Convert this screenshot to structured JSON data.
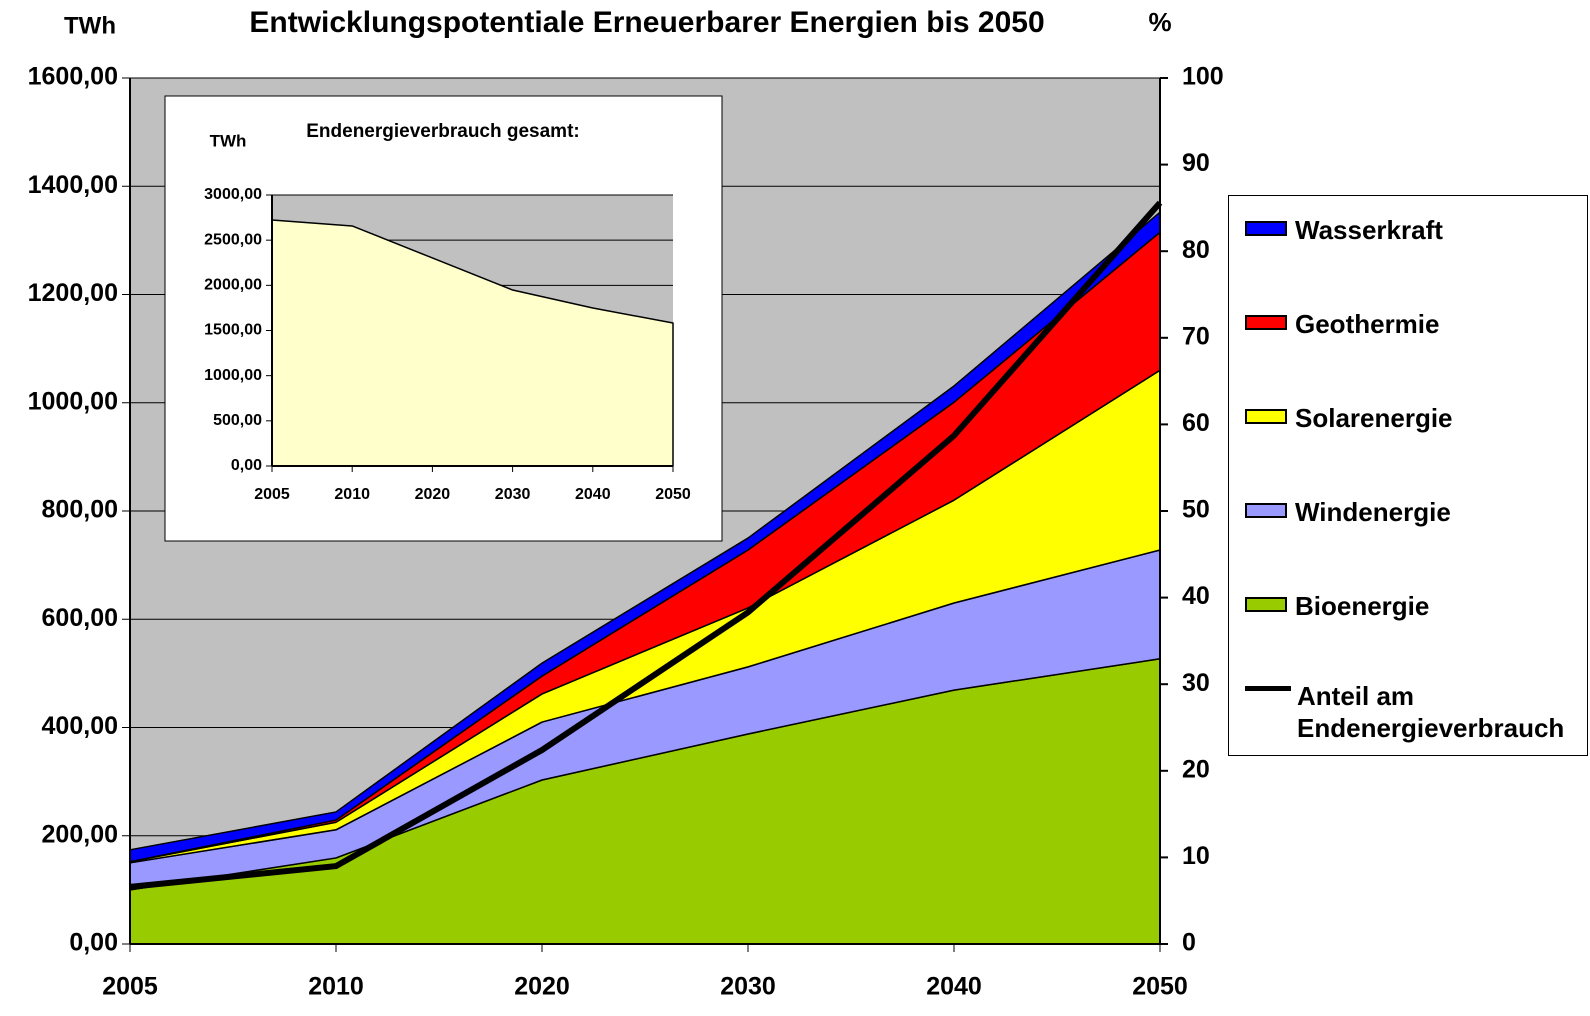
{
  "chart_data": [
    {
      "type": "area",
      "stacked": true,
      "title": "Entwicklungspotentiale Erneuerbarer Energien bis 2050",
      "y_label": "TWh",
      "y2_label": "%",
      "categories": [
        "2005",
        "2010",
        "2020",
        "2030",
        "2040",
        "2050"
      ],
      "series": [
        {
          "name": "Bioenergie",
          "color": "#99cc00",
          "values": [
            100,
            159,
            303,
            388,
            469,
            527
          ]
        },
        {
          "name": "Windenergie",
          "color": "#9999ff",
          "values": [
            50,
            52,
            107,
            124,
            161,
            201
          ]
        },
        {
          "name": "Solarenergie",
          "color": "#ffff00",
          "values": [
            2,
            14,
            52,
            109,
            190,
            332
          ]
        },
        {
          "name": "Geothermie",
          "color": "#ff0000",
          "values": [
            0,
            4,
            33,
            107,
            181,
            255
          ]
        },
        {
          "name": "Wasserkraft",
          "color": "#0000ff",
          "values": [
            22,
            15,
            24,
            22,
            30,
            37
          ]
        },
        {
          "name": "Anteil am Endenergieverbrauch",
          "color": "#000000",
          "type": "line",
          "axis": "y2",
          "values": [
            6.6,
            9,
            22.4,
            38.3,
            58.7,
            85.6
          ]
        }
      ],
      "ylim": [
        0,
        1600
      ],
      "yticks": [
        {
          "value": 0,
          "label": "0,00"
        },
        {
          "value": 200,
          "label": "200,00"
        },
        {
          "value": 400,
          "label": "400,00"
        },
        {
          "value": 600,
          "label": "600,00"
        },
        {
          "value": 800,
          "label": "800,00"
        },
        {
          "value": 1000,
          "label": "1000,00"
        },
        {
          "value": 1200,
          "label": "1200,00"
        },
        {
          "value": 1400,
          "label": "1400,00"
        },
        {
          "value": 1600,
          "label": "1600,00"
        }
      ],
      "y2lim": [
        0,
        100
      ],
      "y2ticks": [
        0,
        10,
        20,
        30,
        40,
        50,
        60,
        70,
        80,
        90,
        100
      ],
      "grid": true,
      "legend": "right"
    },
    {
      "type": "area",
      "title": "Endenergieverbrauch gesamt:",
      "y_label": "TWh",
      "categories": [
        "2005",
        "2010",
        "2020",
        "2030",
        "2040",
        "2050"
      ],
      "series": [
        {
          "name": "Endenergieverbrauch",
          "color": "#ffffcc",
          "values": [
            2723,
            2657,
            2303,
            1948,
            1749,
            1583
          ]
        }
      ],
      "ylim": [
        0,
        3000
      ],
      "yticks": [
        {
          "value": 0,
          "label": "0,00"
        },
        {
          "value": 500,
          "label": "500,00"
        },
        {
          "value": 1000,
          "label": "1000,00"
        },
        {
          "value": 1500,
          "label": "1500,00"
        },
        {
          "value": 2000,
          "label": "2000,00"
        },
        {
          "value": 2500,
          "label": "2500,00"
        },
        {
          "value": 3000,
          "label": "3000,00"
        }
      ],
      "grid": true
    }
  ]
}
